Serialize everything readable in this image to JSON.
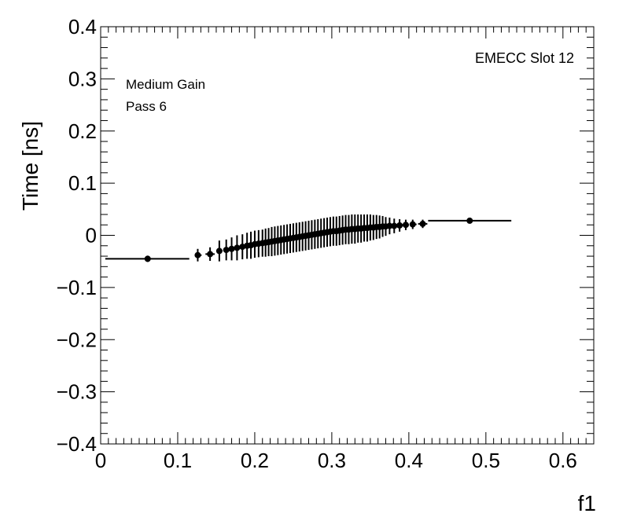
{
  "chart_data": {
    "type": "scatter",
    "title": "",
    "xlabel": "f1",
    "ylabel": "Time [ns]",
    "xlim": [
      0,
      0.64
    ],
    "ylim": [
      -0.4,
      0.4
    ],
    "x_ticks": [
      "0",
      "0.1",
      "0.2",
      "0.3",
      "0.4",
      "0.5",
      "0.6"
    ],
    "x_tick_values": [
      0,
      0.1,
      0.2,
      0.3,
      0.4,
      0.5,
      0.6
    ],
    "y_ticks": [
      "0.4",
      "0.3",
      "0.2",
      "0.1",
      "0",
      "−0.1",
      "−0.2",
      "−0.3",
      "−0.4"
    ],
    "y_tick_values": [
      0.4,
      0.3,
      0.2,
      0.1,
      0,
      -0.1,
      -0.2,
      -0.3,
      -0.4
    ],
    "grid": false,
    "annotations": {
      "gain": "Medium Gain",
      "pass": "Pass 6",
      "slot": "EMECC Slot 12"
    },
    "marker_color": "#000000",
    "points": [
      {
        "x": 0.061,
        "y": -0.045,
        "xerr_low": 0.006,
        "xerr_high": 0.115,
        "yerr": 0.006
      },
      {
        "x": 0.126,
        "y": -0.038,
        "xerr_low": 0.122,
        "xerr_high": 0.131,
        "yerr": 0.012
      },
      {
        "x": 0.142,
        "y": -0.036,
        "xerr_low": 0.136,
        "xerr_high": 0.148,
        "yerr": 0.013
      },
      {
        "x": 0.154,
        "y": -0.03,
        "xerr_low": 0.15,
        "xerr_high": 0.158,
        "yerr": 0.02
      },
      {
        "x": 0.163,
        "y": -0.028,
        "xerr_low": 0.16,
        "xerr_high": 0.166,
        "yerr": 0.02
      },
      {
        "x": 0.17,
        "y": -0.026,
        "xerr_low": 0.167,
        "xerr_high": 0.173,
        "yerr": 0.022
      },
      {
        "x": 0.177,
        "y": -0.024,
        "xerr_low": 0.174,
        "xerr_high": 0.18,
        "yerr": 0.024
      },
      {
        "x": 0.184,
        "y": -0.022,
        "xerr_low": 0.181,
        "xerr_high": 0.187,
        "yerr": 0.024
      },
      {
        "x": 0.19,
        "y": -0.02,
        "xerr_low": 0.188,
        "xerr_high": 0.192,
        "yerr": 0.025
      },
      {
        "x": 0.195,
        "y": -0.019,
        "xerr_low": 0.193,
        "xerr_high": 0.197,
        "yerr": 0.026
      },
      {
        "x": 0.2,
        "y": -0.017,
        "xerr_low": 0.198,
        "xerr_high": 0.202,
        "yerr": 0.026
      },
      {
        "x": 0.205,
        "y": -0.016,
        "xerr_low": 0.203,
        "xerr_high": 0.207,
        "yerr": 0.026
      },
      {
        "x": 0.21,
        "y": -0.015,
        "xerr_low": 0.208,
        "xerr_high": 0.212,
        "yerr": 0.026
      },
      {
        "x": 0.214,
        "y": -0.014,
        "xerr_low": 0.212,
        "xerr_high": 0.216,
        "yerr": 0.027
      },
      {
        "x": 0.218,
        "y": -0.013,
        "xerr_low": 0.216,
        "xerr_high": 0.22,
        "yerr": 0.027
      },
      {
        "x": 0.222,
        "y": -0.012,
        "xerr_low": 0.22,
        "xerr_high": 0.224,
        "yerr": 0.028
      },
      {
        "x": 0.226,
        "y": -0.011,
        "xerr_low": 0.224,
        "xerr_high": 0.228,
        "yerr": 0.028
      },
      {
        "x": 0.23,
        "y": -0.01,
        "xerr_low": 0.228,
        "xerr_high": 0.232,
        "yerr": 0.028
      },
      {
        "x": 0.234,
        "y": -0.009,
        "xerr_low": 0.232,
        "xerr_high": 0.236,
        "yerr": 0.028
      },
      {
        "x": 0.238,
        "y": -0.008,
        "xerr_low": 0.236,
        "xerr_high": 0.24,
        "yerr": 0.028
      },
      {
        "x": 0.242,
        "y": -0.007,
        "xerr_low": 0.24,
        "xerr_high": 0.244,
        "yerr": 0.028
      },
      {
        "x": 0.246,
        "y": -0.006,
        "xerr_low": 0.244,
        "xerr_high": 0.248,
        "yerr": 0.028
      },
      {
        "x": 0.25,
        "y": -0.005,
        "xerr_low": 0.248,
        "xerr_high": 0.252,
        "yerr": 0.028
      },
      {
        "x": 0.254,
        "y": -0.004,
        "xerr_low": 0.252,
        "xerr_high": 0.256,
        "yerr": 0.028
      },
      {
        "x": 0.258,
        "y": -0.003,
        "xerr_low": 0.256,
        "xerr_high": 0.26,
        "yerr": 0.028
      },
      {
        "x": 0.262,
        "y": -0.002,
        "xerr_low": 0.26,
        "xerr_high": 0.264,
        "yerr": 0.028
      },
      {
        "x": 0.266,
        "y": -0.001,
        "xerr_low": 0.264,
        "xerr_high": 0.268,
        "yerr": 0.028
      },
      {
        "x": 0.27,
        "y": 0.0,
        "xerr_low": 0.268,
        "xerr_high": 0.272,
        "yerr": 0.028
      },
      {
        "x": 0.274,
        "y": 0.001,
        "xerr_low": 0.272,
        "xerr_high": 0.276,
        "yerr": 0.028
      },
      {
        "x": 0.278,
        "y": 0.002,
        "xerr_low": 0.276,
        "xerr_high": 0.28,
        "yerr": 0.028
      },
      {
        "x": 0.282,
        "y": 0.003,
        "xerr_low": 0.28,
        "xerr_high": 0.284,
        "yerr": 0.028
      },
      {
        "x": 0.286,
        "y": 0.004,
        "xerr_low": 0.284,
        "xerr_high": 0.288,
        "yerr": 0.028
      },
      {
        "x": 0.29,
        "y": 0.005,
        "xerr_low": 0.288,
        "xerr_high": 0.292,
        "yerr": 0.028
      },
      {
        "x": 0.294,
        "y": 0.006,
        "xerr_low": 0.292,
        "xerr_high": 0.296,
        "yerr": 0.028
      },
      {
        "x": 0.298,
        "y": 0.007,
        "xerr_low": 0.296,
        "xerr_high": 0.3,
        "yerr": 0.028
      },
      {
        "x": 0.302,
        "y": 0.008,
        "xerr_low": 0.3,
        "xerr_high": 0.304,
        "yerr": 0.028
      },
      {
        "x": 0.306,
        "y": 0.008,
        "xerr_low": 0.304,
        "xerr_high": 0.308,
        "yerr": 0.028
      },
      {
        "x": 0.31,
        "y": 0.009,
        "xerr_low": 0.308,
        "xerr_high": 0.312,
        "yerr": 0.028
      },
      {
        "x": 0.314,
        "y": 0.01,
        "xerr_low": 0.312,
        "xerr_high": 0.316,
        "yerr": 0.028
      },
      {
        "x": 0.318,
        "y": 0.011,
        "xerr_low": 0.316,
        "xerr_high": 0.32,
        "yerr": 0.028
      },
      {
        "x": 0.322,
        "y": 0.011,
        "xerr_low": 0.32,
        "xerr_high": 0.324,
        "yerr": 0.028
      },
      {
        "x": 0.326,
        "y": 0.012,
        "xerr_low": 0.324,
        "xerr_high": 0.328,
        "yerr": 0.028
      },
      {
        "x": 0.33,
        "y": 0.012,
        "xerr_low": 0.328,
        "xerr_high": 0.332,
        "yerr": 0.028
      },
      {
        "x": 0.334,
        "y": 0.013,
        "xerr_low": 0.332,
        "xerr_high": 0.336,
        "yerr": 0.027
      },
      {
        "x": 0.338,
        "y": 0.013,
        "xerr_low": 0.336,
        "xerr_high": 0.34,
        "yerr": 0.027
      },
      {
        "x": 0.342,
        "y": 0.014,
        "xerr_low": 0.34,
        "xerr_high": 0.344,
        "yerr": 0.026
      },
      {
        "x": 0.346,
        "y": 0.014,
        "xerr_low": 0.344,
        "xerr_high": 0.348,
        "yerr": 0.026
      },
      {
        "x": 0.35,
        "y": 0.015,
        "xerr_low": 0.348,
        "xerr_high": 0.352,
        "yerr": 0.025
      },
      {
        "x": 0.354,
        "y": 0.015,
        "xerr_low": 0.352,
        "xerr_high": 0.356,
        "yerr": 0.024
      },
      {
        "x": 0.358,
        "y": 0.016,
        "xerr_low": 0.356,
        "xerr_high": 0.36,
        "yerr": 0.023
      },
      {
        "x": 0.362,
        "y": 0.016,
        "xerr_low": 0.36,
        "xerr_high": 0.364,
        "yerr": 0.022
      },
      {
        "x": 0.366,
        "y": 0.017,
        "xerr_low": 0.364,
        "xerr_high": 0.368,
        "yerr": 0.02
      },
      {
        "x": 0.37,
        "y": 0.017,
        "xerr_low": 0.368,
        "xerr_high": 0.372,
        "yerr": 0.018
      },
      {
        "x": 0.375,
        "y": 0.018,
        "xerr_low": 0.372,
        "xerr_high": 0.378,
        "yerr": 0.016
      },
      {
        "x": 0.381,
        "y": 0.018,
        "xerr_low": 0.378,
        "xerr_high": 0.384,
        "yerr": 0.014
      },
      {
        "x": 0.388,
        "y": 0.019,
        "xerr_low": 0.385,
        "xerr_high": 0.391,
        "yerr": 0.012
      },
      {
        "x": 0.396,
        "y": 0.02,
        "xerr_low": 0.392,
        "xerr_high": 0.4,
        "yerr": 0.01
      },
      {
        "x": 0.405,
        "y": 0.021,
        "xerr_low": 0.401,
        "xerr_high": 0.41,
        "yerr": 0.009
      },
      {
        "x": 0.418,
        "y": 0.022,
        "xerr_low": 0.412,
        "xerr_high": 0.424,
        "yerr": 0.008
      },
      {
        "x": 0.479,
        "y": 0.028,
        "xerr_low": 0.425,
        "xerr_high": 0.533,
        "yerr": 0.005
      }
    ]
  }
}
